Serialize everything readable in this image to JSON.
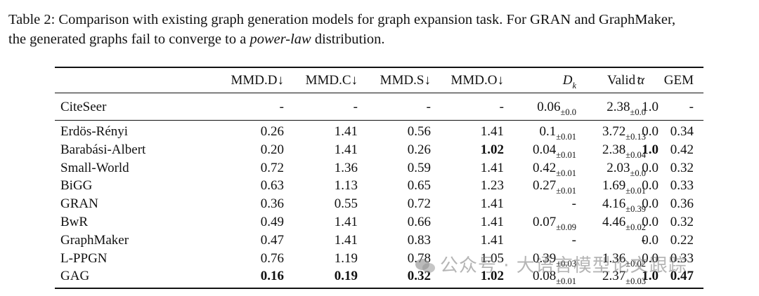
{
  "caption": {
    "prefix": "Table 2: Comparison with existing graph generation models for graph expansion task. For GRAN and GraphMaker,",
    "line2_before": "the generated graphs fail to converge to a ",
    "line2_em": "power-law",
    "line2_after": " distribution."
  },
  "header": {
    "mmd_d": "MMD.D↓",
    "mmd_c": "MMD.C↓",
    "mmd_s": "MMD.S↓",
    "mmd_o": "MMD.O↓",
    "dk_main": "D",
    "dk_sub": "k",
    "alpha": "α",
    "valid": "Valid↑",
    "gem": "GEM"
  },
  "reference_row": {
    "model": "CiteSeer",
    "mmd_d": "-",
    "mmd_c": "-",
    "mmd_s": "-",
    "mmd_o": "-",
    "dk": "0.06",
    "dk_pm": "±0.0",
    "alpha": "2.38",
    "alpha_pm": "±0.0",
    "valid": "1.0",
    "gem": "-"
  },
  "rows": [
    {
      "model": "Erdös-Rényi",
      "mmd_d": "0.26",
      "mmd_c": "1.41",
      "mmd_s": "0.56",
      "mmd_o": "1.41",
      "dk": "0.1",
      "dk_pm": "±0.01",
      "alpha": "3.72",
      "alpha_pm": "±0.13",
      "valid": "0.0",
      "gem": "0.34"
    },
    {
      "model": "Barabási-Albert",
      "mmd_d": "0.20",
      "mmd_c": "1.41",
      "mmd_s": "0.26",
      "mmd_o": "1.02",
      "dk": "0.04",
      "dk_pm": "±0.01",
      "alpha": "2.38",
      "alpha_pm": "±0.04",
      "valid": "1.0",
      "gem": "0.42",
      "bold": [
        "mmd_o",
        "valid"
      ]
    },
    {
      "model": "Small-World",
      "mmd_d": "0.72",
      "mmd_c": "1.36",
      "mmd_s": "0.59",
      "mmd_o": "1.41",
      "dk": "0.42",
      "dk_pm": "±0.01",
      "alpha": "2.03",
      "alpha_pm": "±0.0",
      "valid": "0.0",
      "gem": "0.32"
    },
    {
      "model": "BiGG",
      "mmd_d": "0.63",
      "mmd_c": "1.13",
      "mmd_s": "0.65",
      "mmd_o": "1.23",
      "dk": "0.27",
      "dk_pm": "±0.01",
      "alpha": "1.69",
      "alpha_pm": "±0.01",
      "valid": "0.0",
      "gem": "0.33"
    },
    {
      "model": "GRAN",
      "mmd_d": "0.36",
      "mmd_c": "0.55",
      "mmd_s": "0.72",
      "mmd_o": "1.41",
      "dk": "-",
      "dk_pm": "",
      "alpha": "4.16",
      "alpha_pm": "±0.39",
      "valid": "0.0",
      "gem": "0.36"
    },
    {
      "model": "BwR",
      "mmd_d": "0.49",
      "mmd_c": "1.41",
      "mmd_s": "0.66",
      "mmd_o": "1.41",
      "dk": "0.07",
      "dk_pm": "±0.09",
      "alpha": "4.46",
      "alpha_pm": "±0.02",
      "valid": "0.0",
      "gem": "0.32"
    },
    {
      "model": "GraphMaker",
      "mmd_d": "0.47",
      "mmd_c": "1.41",
      "mmd_s": "0.83",
      "mmd_o": "1.41",
      "dk": "-",
      "dk_pm": "",
      "alpha": "-",
      "alpha_pm": "",
      "valid": "0.0",
      "gem": "0.22"
    },
    {
      "model": "L-PPGN",
      "mmd_d": "0.76",
      "mmd_c": "1.19",
      "mmd_s": "0.78",
      "mmd_o": "1.05",
      "dk": "0.39",
      "dk_pm": "±0.03",
      "alpha": "1.36",
      "alpha_pm": "±0.02",
      "valid": "0.0",
      "gem": "0.33"
    },
    {
      "model": "GAG",
      "mmd_d": "0.16",
      "mmd_c": "0.19",
      "mmd_s": "0.32",
      "mmd_o": "1.02",
      "dk": "0.08",
      "dk_pm": "±0.01",
      "alpha": "2.37",
      "alpha_pm": "±0.03",
      "valid": "1.0",
      "gem": "0.47",
      "bold": [
        "mmd_d",
        "mmd_c",
        "mmd_s",
        "mmd_o",
        "valid",
        "gem"
      ]
    }
  ],
  "watermark": "公众号 · 大语言模型论文跟踪"
}
